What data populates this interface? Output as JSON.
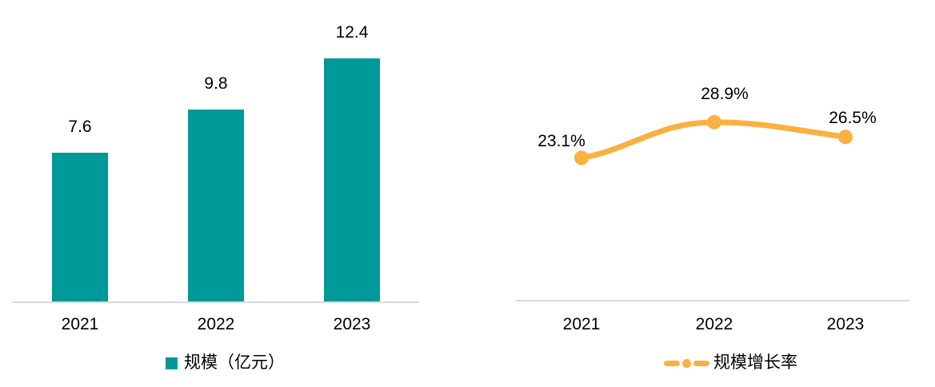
{
  "chart_data": [
    {
      "type": "bar",
      "title": "",
      "categories": [
        "2021",
        "2022",
        "2023"
      ],
      "values": [
        7.6,
        9.8,
        12.4
      ],
      "value_labels": [
        "7.6",
        "9.8",
        "12.4"
      ],
      "legend_label": "规模（亿元）",
      "series_color": "#009999",
      "axis_line_color": "#d9d9d9",
      "ylim": [
        0,
        15
      ],
      "grid": false,
      "legend_position": "bottom"
    },
    {
      "type": "line",
      "title": "",
      "categories": [
        "2021",
        "2022",
        "2023"
      ],
      "values": [
        23.1,
        28.9,
        26.5
      ],
      "value_labels": [
        "23.1%",
        "28.9%",
        "26.5%"
      ],
      "legend_label": "规模增长率",
      "series_color": "#fbb040",
      "axis_line_color": "#d9d9d9",
      "ylim": [
        0,
        45
      ],
      "grid": false,
      "legend_position": "bottom",
      "line_style": "smooth",
      "marker": "circle"
    }
  ]
}
